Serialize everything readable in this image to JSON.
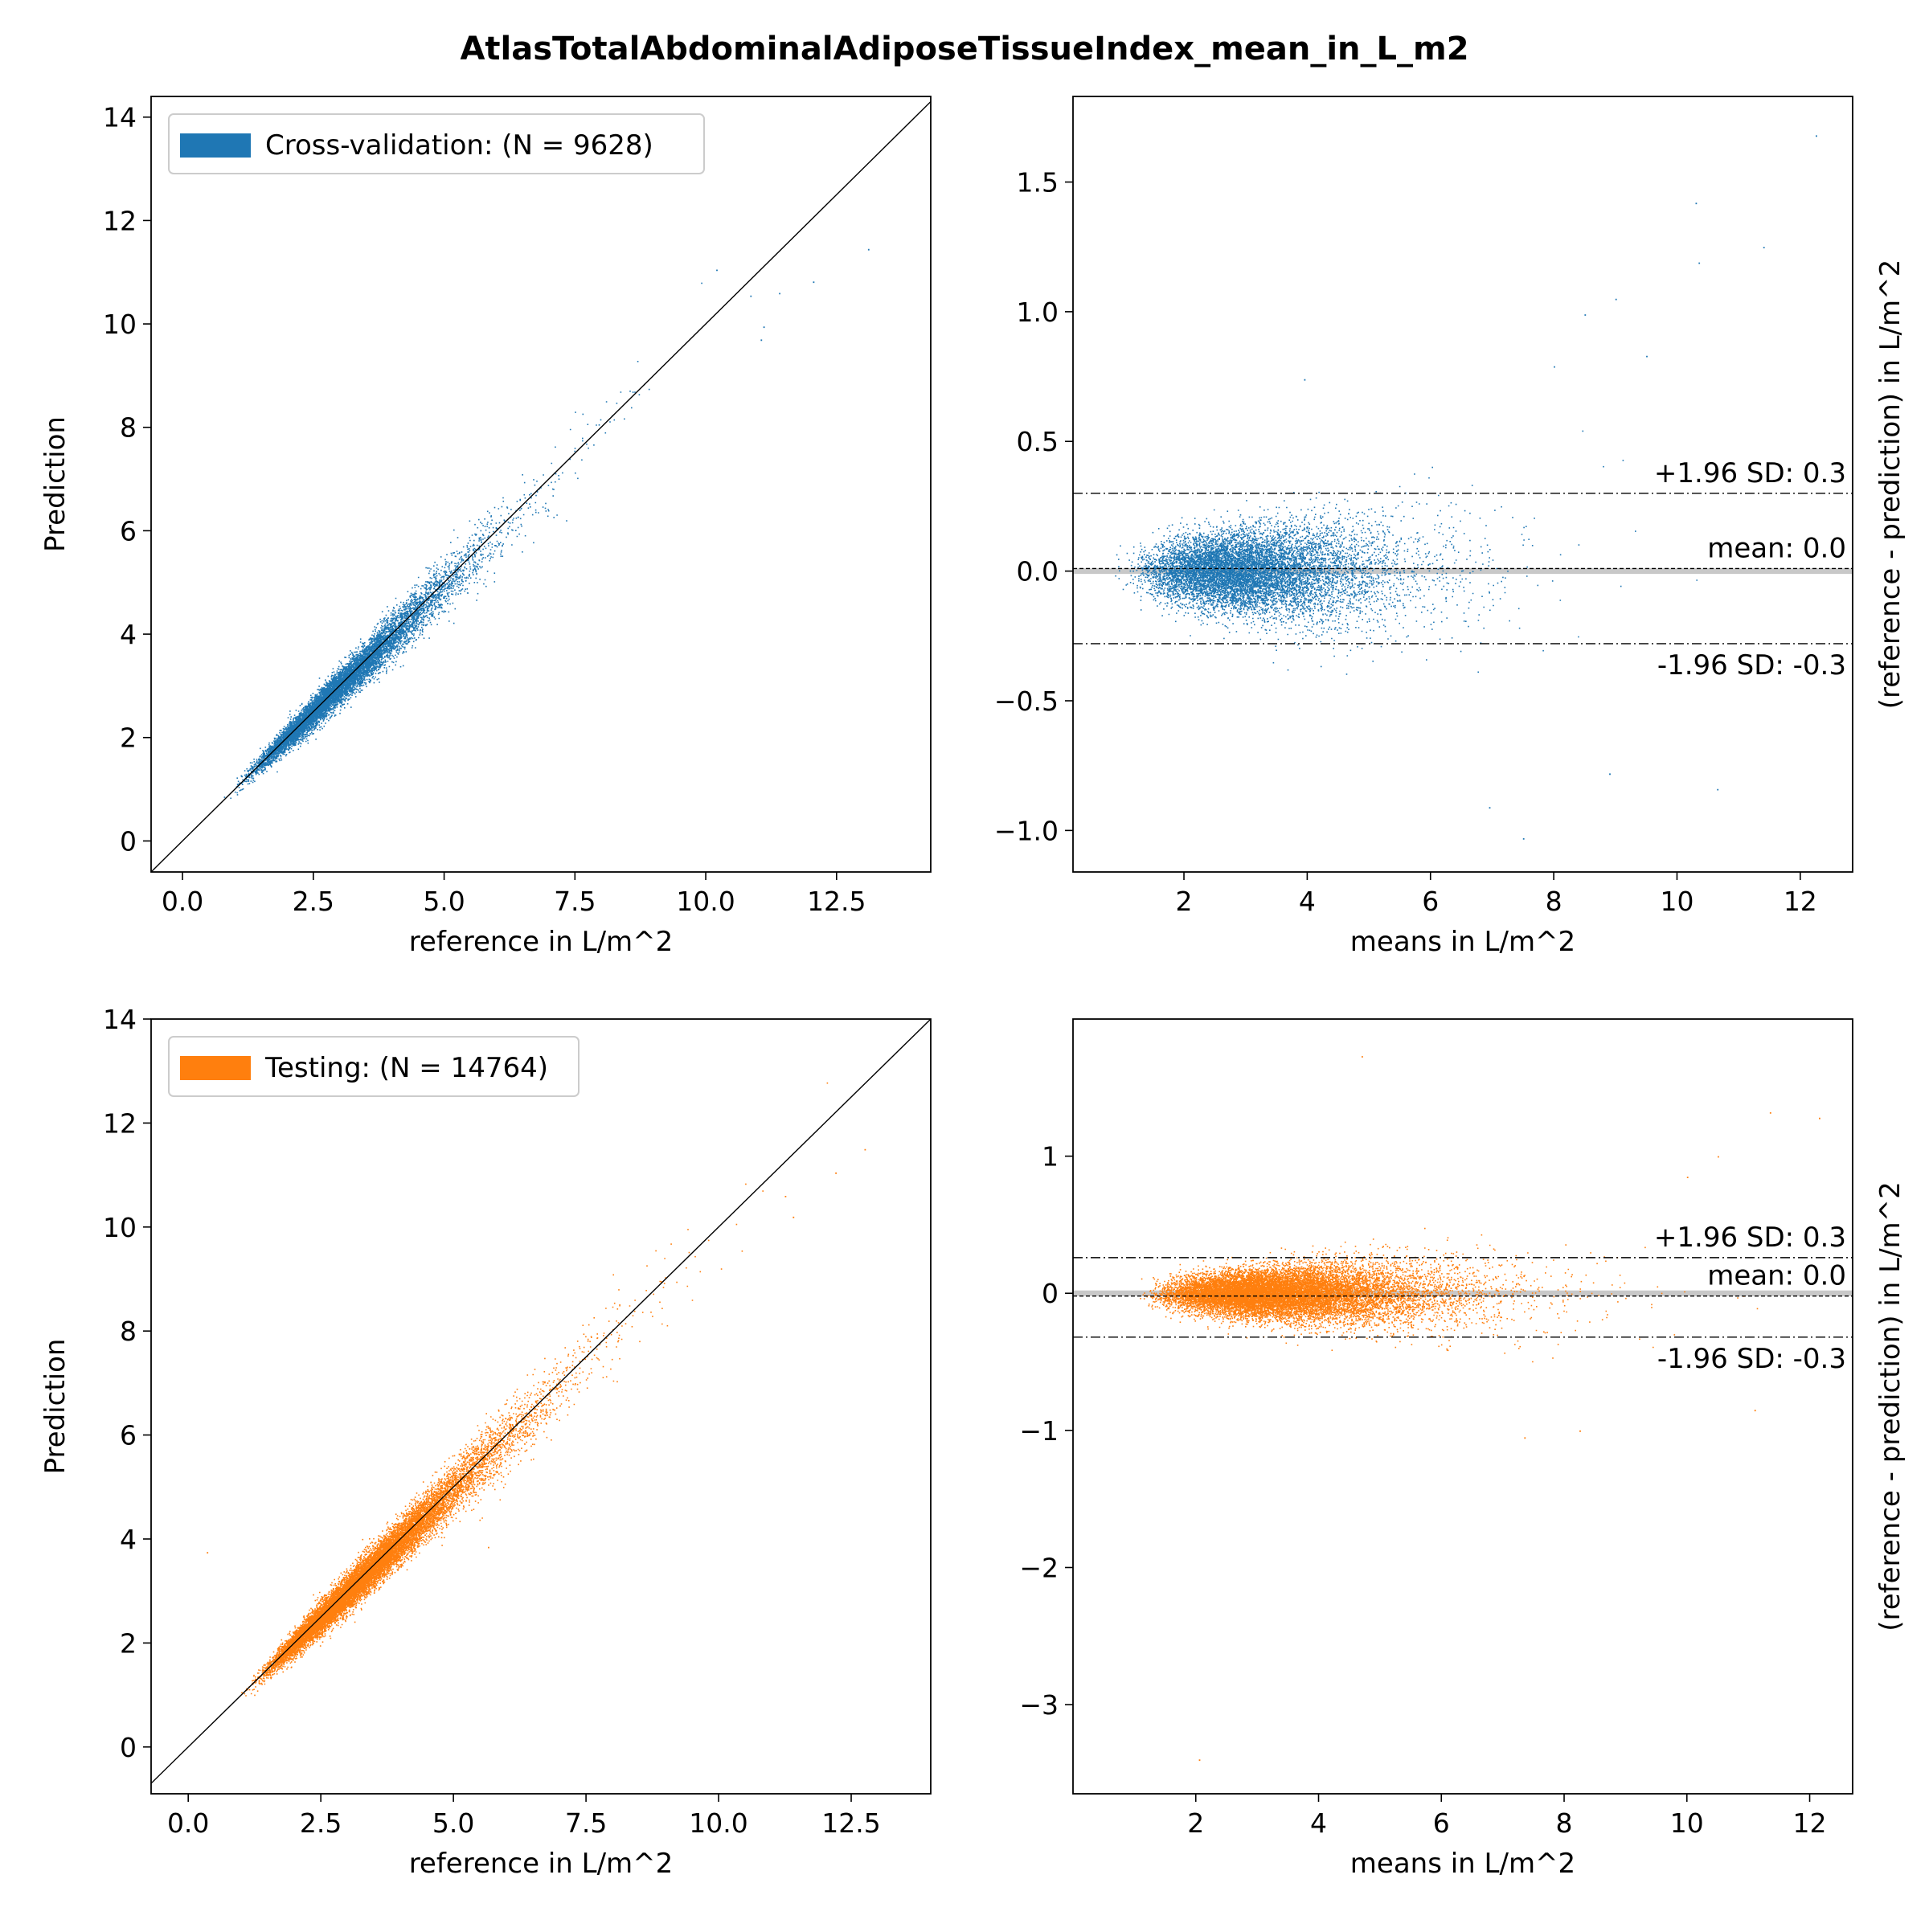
{
  "figure": {
    "title": "AtlasTotalAbdominalAdiposeTissueIndex_mean_in_L_m2",
    "colors": {
      "cv": "#1f77b4",
      "test": "#ff7f0e",
      "axis": "#000000",
      "zero_line": "#c8c8c8"
    }
  },
  "chart_data": [
    {
      "id": "cv_scatter",
      "type": "scatter",
      "title": "",
      "xlabel": "reference in L/m^2",
      "ylabel": "Prediction",
      "xlim": [
        -0.6,
        14.3
      ],
      "ylim": [
        -0.6,
        14.4
      ],
      "xticks": [
        0,
        2.5,
        5,
        7.5,
        10,
        12.5
      ],
      "xtick_labels": [
        "0.0",
        "2.5",
        "5.0",
        "7.5",
        "10.0",
        "12.5"
      ],
      "yticks": [
        0,
        2,
        4,
        6,
        8,
        10,
        12,
        14
      ],
      "ytick_labels": [
        "0",
        "2",
        "4",
        "6",
        "8",
        "10",
        "12",
        "14"
      ],
      "legend": {
        "label": "Cross-validation: (N = 9628)",
        "placement": "upper left",
        "color": "#1f77b4"
      },
      "identity_line": true,
      "series": [
        {
          "name": "Cross-validation: (N = 9628)",
          "color": "#1f77b4",
          "n": 9628,
          "x_range": [
            0.7,
            13.1
          ],
          "x_mode": 3.0,
          "slope": 0.98,
          "intercept": 0.05,
          "outliers": [
            [
              13.1,
              11.45
            ],
            [
              12.05,
              10.82
            ],
            [
              10.2,
              11.05
            ],
            [
              11.1,
              9.95
            ],
            [
              11.05,
              9.7
            ],
            [
              10.85,
              10.55
            ],
            [
              11.4,
              10.6
            ]
          ]
        }
      ]
    },
    {
      "id": "cv_bland_altman",
      "type": "scatter",
      "title": "",
      "xlabel": "means in L/m^2",
      "ylabel": "(reference - prediction) in L/m^2",
      "ylabel_position": "right",
      "xlim": [
        0.2,
        12.85
      ],
      "ylim": [
        -1.16,
        1.83
      ],
      "xticks": [
        2,
        4,
        6,
        8,
        10,
        12
      ],
      "xtick_labels": [
        "2",
        "4",
        "6",
        "8",
        "10",
        "12"
      ],
      "yticks": [
        -1.0,
        -0.5,
        0.0,
        0.5,
        1.0,
        1.5
      ],
      "ytick_labels": [
        "−1.0",
        "−0.5",
        "0.0",
        "0.5",
        "1.0",
        "1.5"
      ],
      "reference_lines": [
        {
          "y": 0.3,
          "style": "dashdot",
          "label": "+1.96 SD: 0.3"
        },
        {
          "y": 0.01,
          "style": "dashed",
          "label": "mean: 0.0"
        },
        {
          "y": -0.28,
          "style": "dashdot",
          "label": "-1.96 SD: -0.3"
        }
      ],
      "zero_line": true,
      "series": [
        {
          "name": "Cross-validation",
          "color": "#1f77b4",
          "n": 9628,
          "x_range": [
            0.8,
            10.8
          ],
          "x_mode": 3.0,
          "spread": 0.07,
          "outliers": [
            [
              12.25,
              1.68
            ],
            [
              10.3,
              1.42
            ],
            [
              10.35,
              1.19
            ],
            [
              11.4,
              1.25
            ],
            [
              8.5,
              0.99
            ],
            [
              9.0,
              1.05
            ],
            [
              9.5,
              0.83
            ],
            [
              8.0,
              0.79
            ],
            [
              3.95,
              0.74
            ],
            [
              7.5,
              -1.03
            ],
            [
              6.95,
              -0.91
            ],
            [
              10.65,
              -0.84
            ],
            [
              8.9,
              -0.78
            ]
          ]
        }
      ]
    },
    {
      "id": "test_scatter",
      "type": "scatter",
      "title": "",
      "xlabel": "reference in L/m^2",
      "ylabel": "Prediction",
      "xlim": [
        -0.7,
        14.0
      ],
      "ylim": [
        -0.9,
        14.0
      ],
      "xticks": [
        0,
        2.5,
        5,
        7.5,
        10,
        12.5
      ],
      "xtick_labels": [
        "0.0",
        "2.5",
        "5.0",
        "7.5",
        "10.0",
        "12.5"
      ],
      "yticks": [
        0,
        2,
        4,
        6,
        8,
        10,
        12,
        14
      ],
      "ytick_labels": [
        "0",
        "2",
        "4",
        "6",
        "8",
        "10",
        "12",
        "14"
      ],
      "legend": {
        "label": "Testing: (N = 14764)",
        "placement": "upper left",
        "color": "#ff7f0e"
      },
      "identity_line": true,
      "series": [
        {
          "name": "Testing: (N = 14764)",
          "color": "#ff7f0e",
          "n": 14764,
          "x_range": [
            0.75,
            12.8
          ],
          "x_mode": 3.3,
          "slope": 0.99,
          "intercept": 0.02,
          "outliers": [
            [
              0.35,
              3.75
            ],
            [
              12.75,
              11.5
            ],
            [
              12.2,
              11.05
            ],
            [
              11.4,
              10.2
            ],
            [
              11.25,
              10.6
            ],
            [
              5.65,
              3.85
            ]
          ]
        }
      ]
    },
    {
      "id": "test_bland_altman",
      "type": "scatter",
      "title": "",
      "xlabel": "means in L/m^2",
      "ylabel": "(reference - prediction) in L/m^2",
      "ylabel_position": "right",
      "xlim": [
        0.0,
        12.7
      ],
      "ylim": [
        -3.65,
        2.0
      ],
      "xticks": [
        2,
        4,
        6,
        8,
        10,
        12
      ],
      "xtick_labels": [
        "2",
        "4",
        "6",
        "8",
        "10",
        "12"
      ],
      "yticks": [
        -3,
        -2,
        -1,
        0,
        1
      ],
      "ytick_labels": [
        "−3",
        "−2",
        "−1",
        "0",
        "1"
      ],
      "reference_lines": [
        {
          "y": 0.26,
          "style": "dashdot",
          "label": "+1.96 SD: 0.3"
        },
        {
          "y": -0.02,
          "style": "dashed",
          "label": "mean: 0.0"
        },
        {
          "y": -0.32,
          "style": "dashdot",
          "label": "-1.96 SD: -0.3"
        }
      ],
      "zero_line": true,
      "series": [
        {
          "name": "Testing",
          "color": "#ff7f0e",
          "n": 14764,
          "x_range": [
            0.7,
            11.3
          ],
          "x_mode": 3.3,
          "spread": 0.075,
          "outliers": [
            [
              4.7,
              1.73
            ],
            [
              12.15,
              1.28
            ],
            [
              11.35,
              1.32
            ],
            [
              2.05,
              -3.4
            ],
            [
              7.35,
              -1.05
            ],
            [
              8.25,
              -1.0
            ],
            [
              10.5,
              1.0
            ],
            [
              10.0,
              0.85
            ],
            [
              11.1,
              -0.85
            ]
          ]
        }
      ]
    }
  ]
}
